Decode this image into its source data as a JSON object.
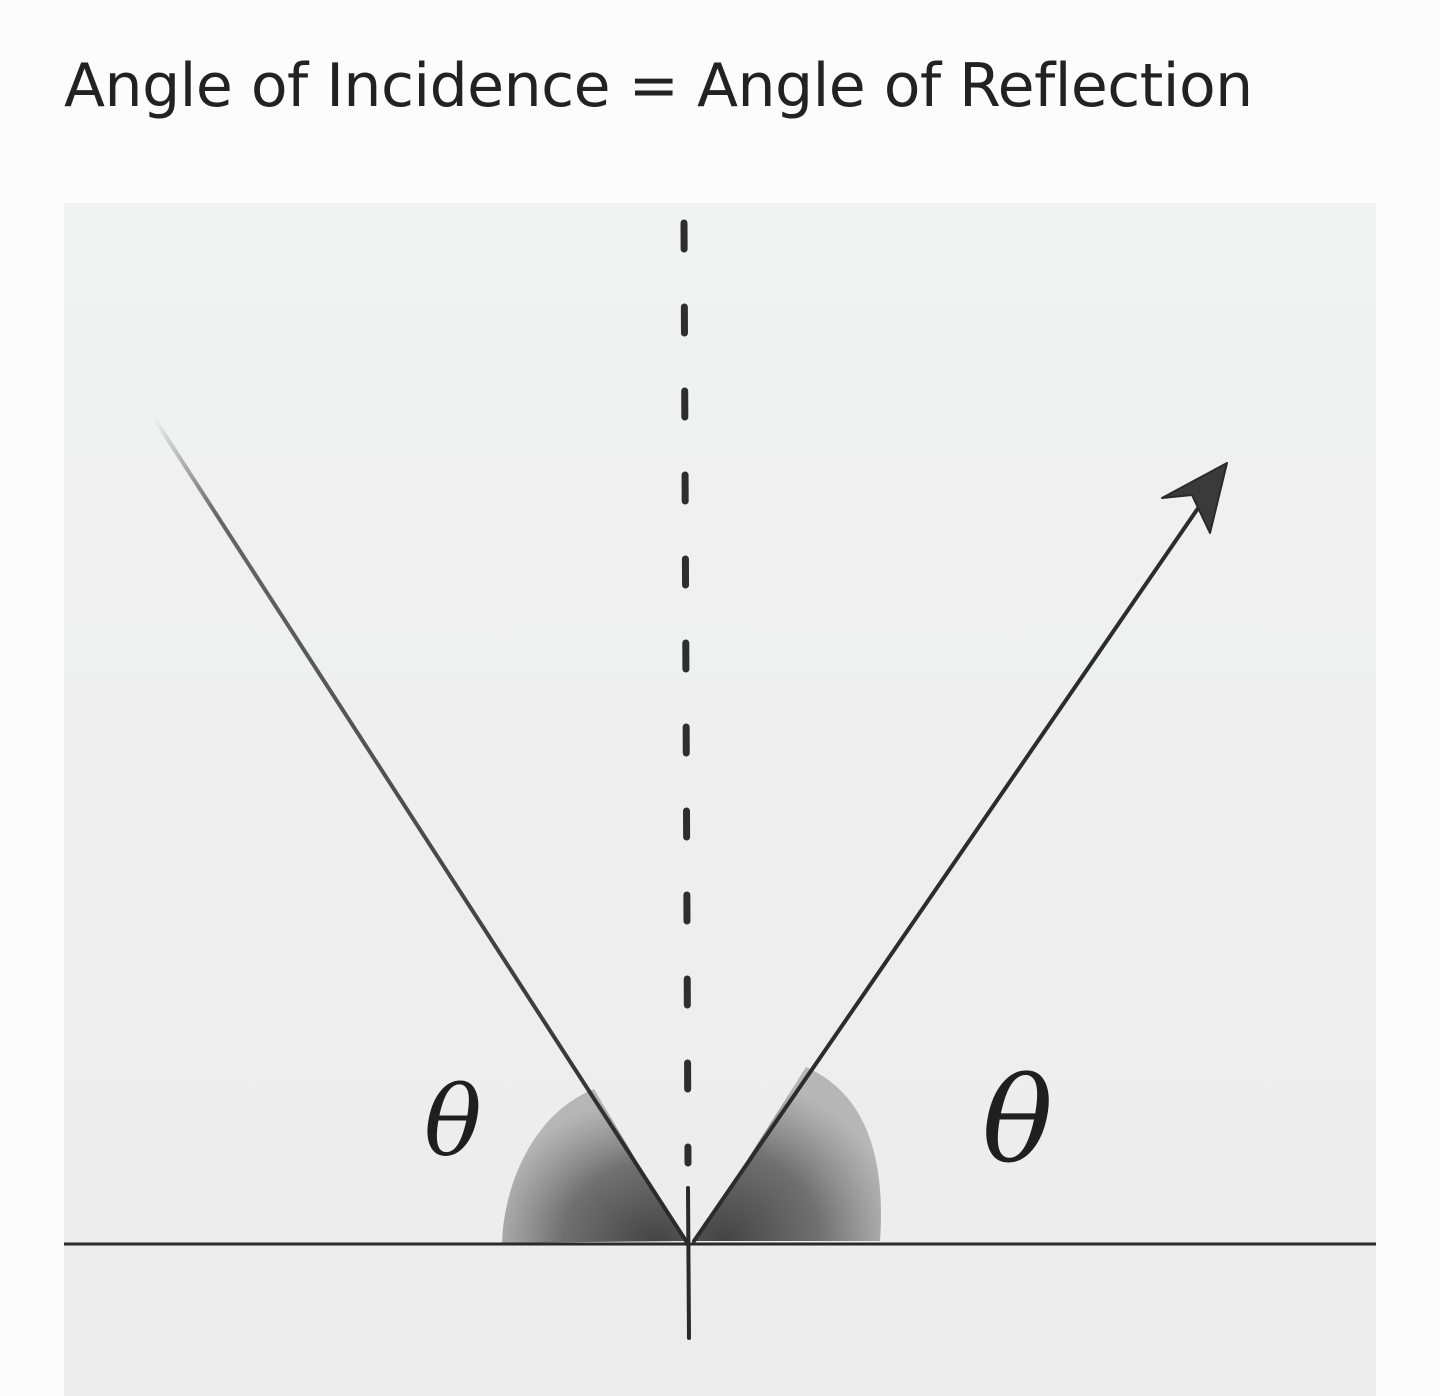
{
  "title": "Angle of Incidence = Angle of Reflection",
  "diagram": {
    "incidence_angle_label": "θ",
    "reflection_angle_label": "θ",
    "colors": {
      "ink": "#2a2a2a",
      "shade": "#4a4a4a",
      "paper": "#efefef"
    }
  }
}
